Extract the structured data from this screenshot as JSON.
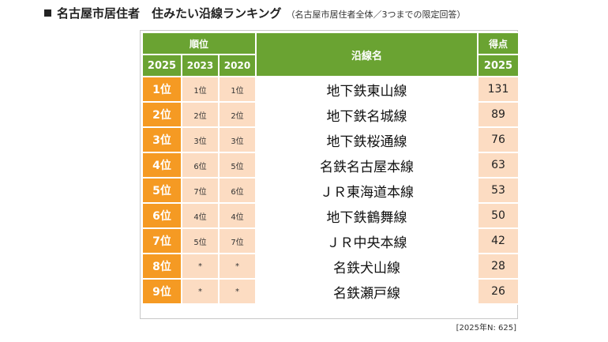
{
  "header": {
    "title": "名古屋市居住者　住みたい沿線ランキング",
    "subtitle": "（名古屋市居住者全体／3つまでの限定回答）"
  },
  "table": {
    "col_rank": "順位",
    "col_2025": "2025",
    "col_2023": "2023",
    "col_2020": "2020",
    "col_line": "沿線名",
    "col_score": "得点",
    "col_score_year": "2025",
    "rows": [
      {
        "rank": "1位",
        "r2023": "1位",
        "r2020": "1位",
        "name": "地下鉄東山線",
        "score": "131"
      },
      {
        "rank": "2位",
        "r2023": "2位",
        "r2020": "2位",
        "name": "地下鉄名城線",
        "score": "89"
      },
      {
        "rank": "3位",
        "r2023": "3位",
        "r2020": "3位",
        "name": "地下鉄桜通線",
        "score": "76"
      },
      {
        "rank": "4位",
        "r2023": "6位",
        "r2020": "5位",
        "name": "名鉄名古屋本線",
        "score": "63"
      },
      {
        "rank": "5位",
        "r2023": "7位",
        "r2020": "6位",
        "name": "ＪＲ東海道本線",
        "score": "53"
      },
      {
        "rank": "6位",
        "r2023": "4位",
        "r2020": "4位",
        "name": "地下鉄鶴舞線",
        "score": "50"
      },
      {
        "rank": "7位",
        "r2023": "5位",
        "r2020": "7位",
        "name": "ＪＲ中央本線",
        "score": "42"
      },
      {
        "rank": "8位",
        "r2023": "*",
        "r2020": "*",
        "name": "名鉄犬山線",
        "score": "28"
      },
      {
        "rank": "9位",
        "r2023": "*",
        "r2020": "*",
        "name": "名鉄瀬戸線",
        "score": "26"
      }
    ]
  },
  "footnote": "[2025年N:  625]",
  "colors": {
    "header_green": "#6aa332",
    "rank_orange": "#f59a23",
    "light_peach": "#fcdcc2"
  },
  "icons": {
    "bullet": "black-square-icon"
  }
}
